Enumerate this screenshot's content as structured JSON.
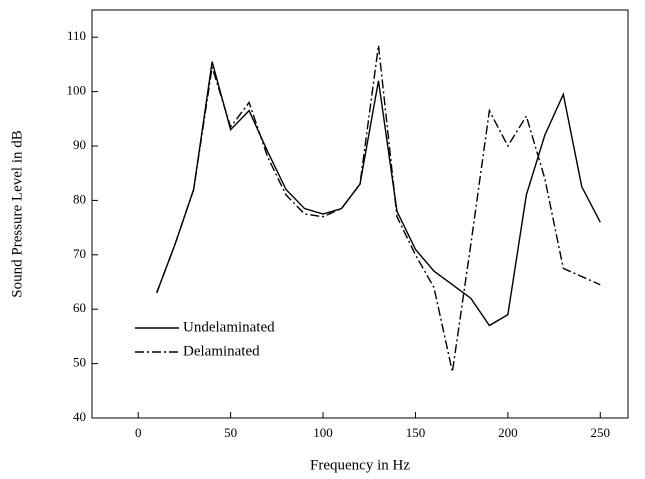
{
  "chart_data": {
    "type": "line",
    "xlabel": "Frequency in Hz",
    "ylabel": "Sound Pressure Level in dB",
    "x": [
      10,
      20,
      30,
      40,
      50,
      60,
      70,
      80,
      90,
      100,
      110,
      120,
      130,
      140,
      150,
      160,
      170,
      180,
      190,
      200,
      210,
      220,
      230,
      240,
      250
    ],
    "series": [
      {
        "name": "Undelaminated",
        "color": "#000000",
        "style": "solid",
        "values": [
          63,
          72,
          82,
          105.5,
          93,
          96.5,
          89,
          82,
          78.5,
          77.5,
          78.5,
          83,
          102,
          78,
          71,
          67,
          64.5,
          62,
          57,
          59,
          81,
          92,
          99.5,
          82.5,
          76
        ]
      },
      {
        "name": "Delaminated",
        "color": "#000000",
        "style": "dashdot",
        "values": [
          63,
          72,
          82,
          104.5,
          93.5,
          98,
          88,
          81,
          77.5,
          77,
          78.5,
          83,
          108.5,
          77,
          70,
          64,
          48.5,
          72,
          96.5,
          90,
          95.5,
          84,
          67.5,
          66,
          64.5
        ]
      }
    ],
    "xlim": [
      -25,
      265
    ],
    "ylim": [
      40,
      115
    ],
    "xticks": [
      0,
      50,
      100,
      150,
      200,
      250
    ],
    "yticks": [
      40,
      50,
      60,
      70,
      80,
      90,
      100,
      110
    ],
    "legend": "lower left",
    "grid": false
  }
}
